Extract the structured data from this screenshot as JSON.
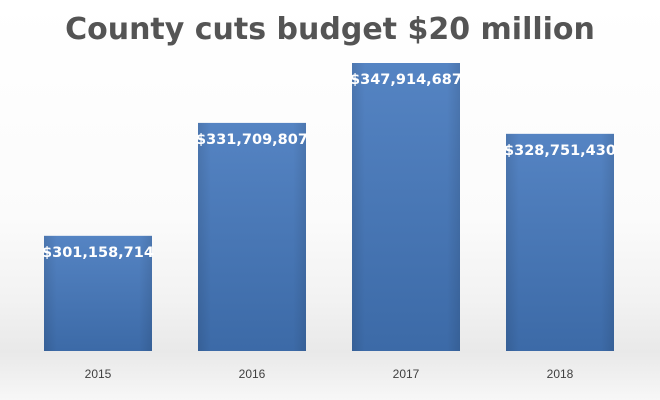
{
  "chart_data": {
    "type": "bar",
    "title": "County cuts budget $20 million",
    "categories": [
      "2015",
      "2016",
      "2017",
      "2018"
    ],
    "values": [
      301158714,
      331709807,
      347914687,
      328751430
    ],
    "data_labels": [
      "$301,158,714",
      "$331,709,807",
      "$347,914,687",
      "$328,751,430"
    ],
    "xlabel": "",
    "ylabel": "",
    "grid": false,
    "legend": "none",
    "bar_color": "#4a7ab9"
  }
}
